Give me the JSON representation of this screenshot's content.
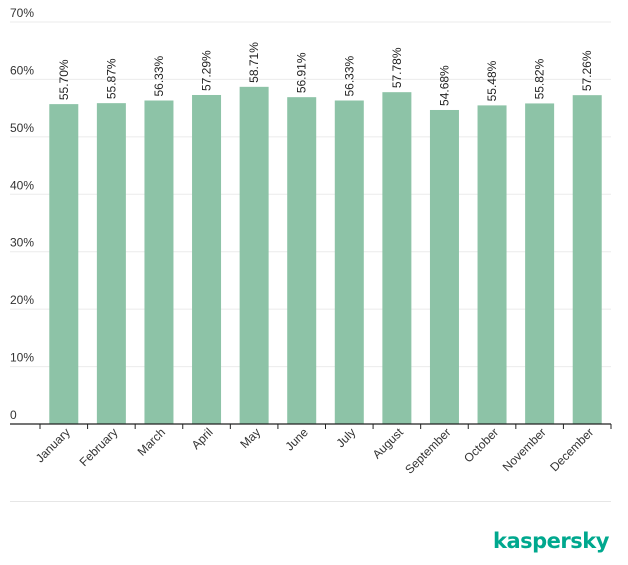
{
  "chart_data": {
    "type": "bar",
    "title": "",
    "xlabel": "",
    "ylabel": "",
    "ylim": [
      0,
      70
    ],
    "yticks": [
      {
        "value": 0,
        "label": "0"
      },
      {
        "value": 10,
        "label": "10%"
      },
      {
        "value": 20,
        "label": "20%"
      },
      {
        "value": 30,
        "label": "30%"
      },
      {
        "value": 40,
        "label": "40%"
      },
      {
        "value": 50,
        "label": "50%"
      },
      {
        "value": 60,
        "label": "60%"
      },
      {
        "value": 70,
        "label": "70%"
      }
    ],
    "grid": true,
    "categories": [
      "January",
      "February",
      "March",
      "April",
      "May",
      "June",
      "July",
      "August",
      "September",
      "October",
      "November",
      "December"
    ],
    "values": [
      55.7,
      55.87,
      56.33,
      57.29,
      58.71,
      56.91,
      56.33,
      57.78,
      54.68,
      55.48,
      55.82,
      57.26
    ],
    "value_labels": [
      "55.70%",
      "55.87%",
      "56.33%",
      "57.29%",
      "58.71%",
      "56.91%",
      "56.33%",
      "57.78%",
      "54.68%",
      "55.48%",
      "55.82%",
      "57.26%"
    ],
    "bar_color": "#8dc3a7",
    "grid_color": "#ebebeb",
    "axis_color": "#222222"
  },
  "brand": {
    "logo_text": "kaspersky",
    "logo_color": "#00a88e"
  }
}
